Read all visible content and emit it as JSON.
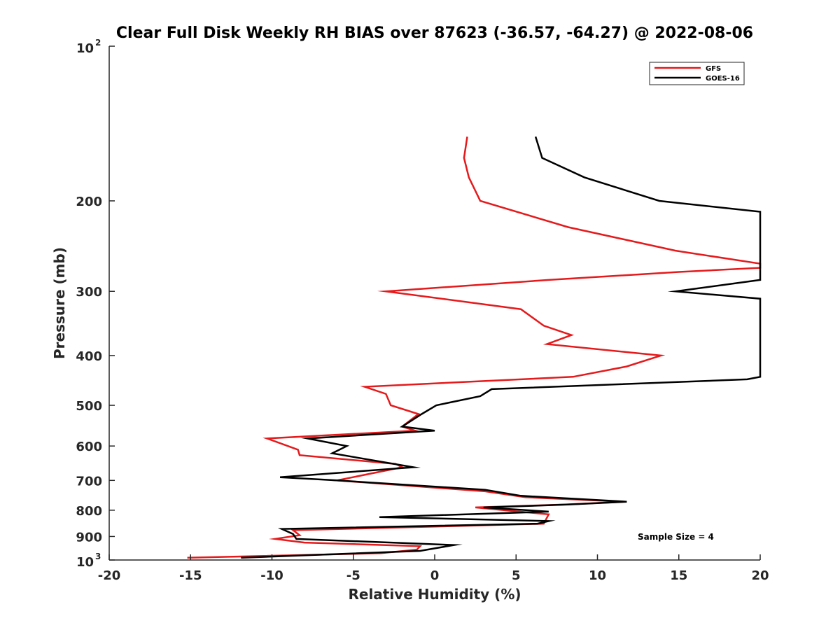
{
  "chart_data": {
    "type": "line",
    "title": "Clear Full Disk Weekly RH BIAS over 87623 (-36.57, -64.27) @ 2022-08-06",
    "xlabel": "Relative Humidity (%)",
    "ylabel": "Pressure (mb)",
    "xlim": [
      -20,
      20
    ],
    "ylim": [
      100,
      1000
    ],
    "yscale": "log",
    "y_reversed": true,
    "grid": false,
    "legend_position": "top-right",
    "x_ticks": [
      "-20",
      "-15",
      "-10",
      "-5",
      "0",
      "5",
      "10",
      "15",
      "20"
    ],
    "y_ticks": [
      {
        "value": 100,
        "base": "10",
        "exp": "2"
      },
      {
        "value": 200,
        "label": "200"
      },
      {
        "value": 300,
        "label": "300"
      },
      {
        "value": 400,
        "label": "400"
      },
      {
        "value": 500,
        "label": "500"
      },
      {
        "value": 600,
        "label": "600"
      },
      {
        "value": 700,
        "label": "700"
      },
      {
        "value": 800,
        "label": "800"
      },
      {
        "value": 900,
        "label": "900"
      },
      {
        "value": 1000,
        "base": "10",
        "exp": "3"
      }
    ],
    "annotation": "Sample Size = 4",
    "series": [
      {
        "name": "GFS",
        "color": "#e41a1c",
        "points": [
          [
            2.0,
            150
          ],
          [
            1.8,
            165
          ],
          [
            2.1,
            180
          ],
          [
            2.8,
            200
          ],
          [
            8.2,
            225
          ],
          [
            14.8,
            250
          ],
          [
            20,
            265
          ],
          [
            20,
            270
          ],
          [
            15.0,
            275
          ],
          [
            7.0,
            285
          ],
          [
            -3.0,
            300
          ],
          [
            5.3,
            325
          ],
          [
            6.7,
            350
          ],
          [
            8.4,
            365
          ],
          [
            6.9,
            380
          ],
          [
            13.9,
            400
          ],
          [
            11.8,
            420
          ],
          [
            8.5,
            440
          ],
          [
            -4.3,
            460
          ],
          [
            -3.0,
            475
          ],
          [
            -2.7,
            500
          ],
          [
            -1.0,
            520
          ],
          [
            -2.0,
            550
          ],
          [
            -1.2,
            560
          ],
          [
            -10.3,
            580
          ],
          [
            -8.4,
            610
          ],
          [
            -8.3,
            625
          ],
          [
            -2.4,
            650
          ],
          [
            -2.0,
            660
          ],
          [
            -6.0,
            700
          ],
          [
            3.1,
            735
          ],
          [
            5.6,
            755
          ],
          [
            11.7,
            770
          ],
          [
            8.0,
            780
          ],
          [
            2.5,
            790
          ],
          [
            7.0,
            815
          ],
          [
            6.7,
            850
          ],
          [
            -8.7,
            875
          ],
          [
            -8.3,
            895
          ],
          [
            -9.8,
            910
          ],
          [
            -8.0,
            925
          ],
          [
            -0.9,
            940
          ],
          [
            -1.1,
            955
          ],
          [
            -3.3,
            970
          ],
          [
            -15.2,
            990
          ]
        ]
      },
      {
        "name": "GOES-16",
        "color": "#000000",
        "points": [
          [
            6.2,
            150
          ],
          [
            6.6,
            165
          ],
          [
            9.2,
            180
          ],
          [
            13.8,
            200
          ],
          [
            20,
            210
          ],
          [
            20,
            285
          ],
          [
            14.8,
            300
          ],
          [
            20,
            310
          ],
          [
            20,
            440
          ],
          [
            19.2,
            445
          ],
          [
            3.5,
            465
          ],
          [
            2.8,
            480
          ],
          [
            0.1,
            500
          ],
          [
            -0.8,
            520
          ],
          [
            -2.0,
            550
          ],
          [
            0.0,
            560
          ],
          [
            -7.8,
            580
          ],
          [
            -5.4,
            600
          ],
          [
            -6.3,
            620
          ],
          [
            -1.3,
            660
          ],
          [
            -9.5,
            690
          ],
          [
            -6.0,
            700
          ],
          [
            3.1,
            730
          ],
          [
            5.3,
            750
          ],
          [
            11.8,
            770
          ],
          [
            8.2,
            780
          ],
          [
            3.0,
            790
          ],
          [
            7.0,
            805
          ],
          [
            -3.4,
            825
          ],
          [
            7.0,
            840
          ],
          [
            6.3,
            850
          ],
          [
            -9.4,
            870
          ],
          [
            -8.7,
            890
          ],
          [
            -8.5,
            910
          ],
          [
            1.2,
            935
          ],
          [
            -0.9,
            960
          ],
          [
            -11.9,
            990
          ]
        ]
      }
    ]
  }
}
